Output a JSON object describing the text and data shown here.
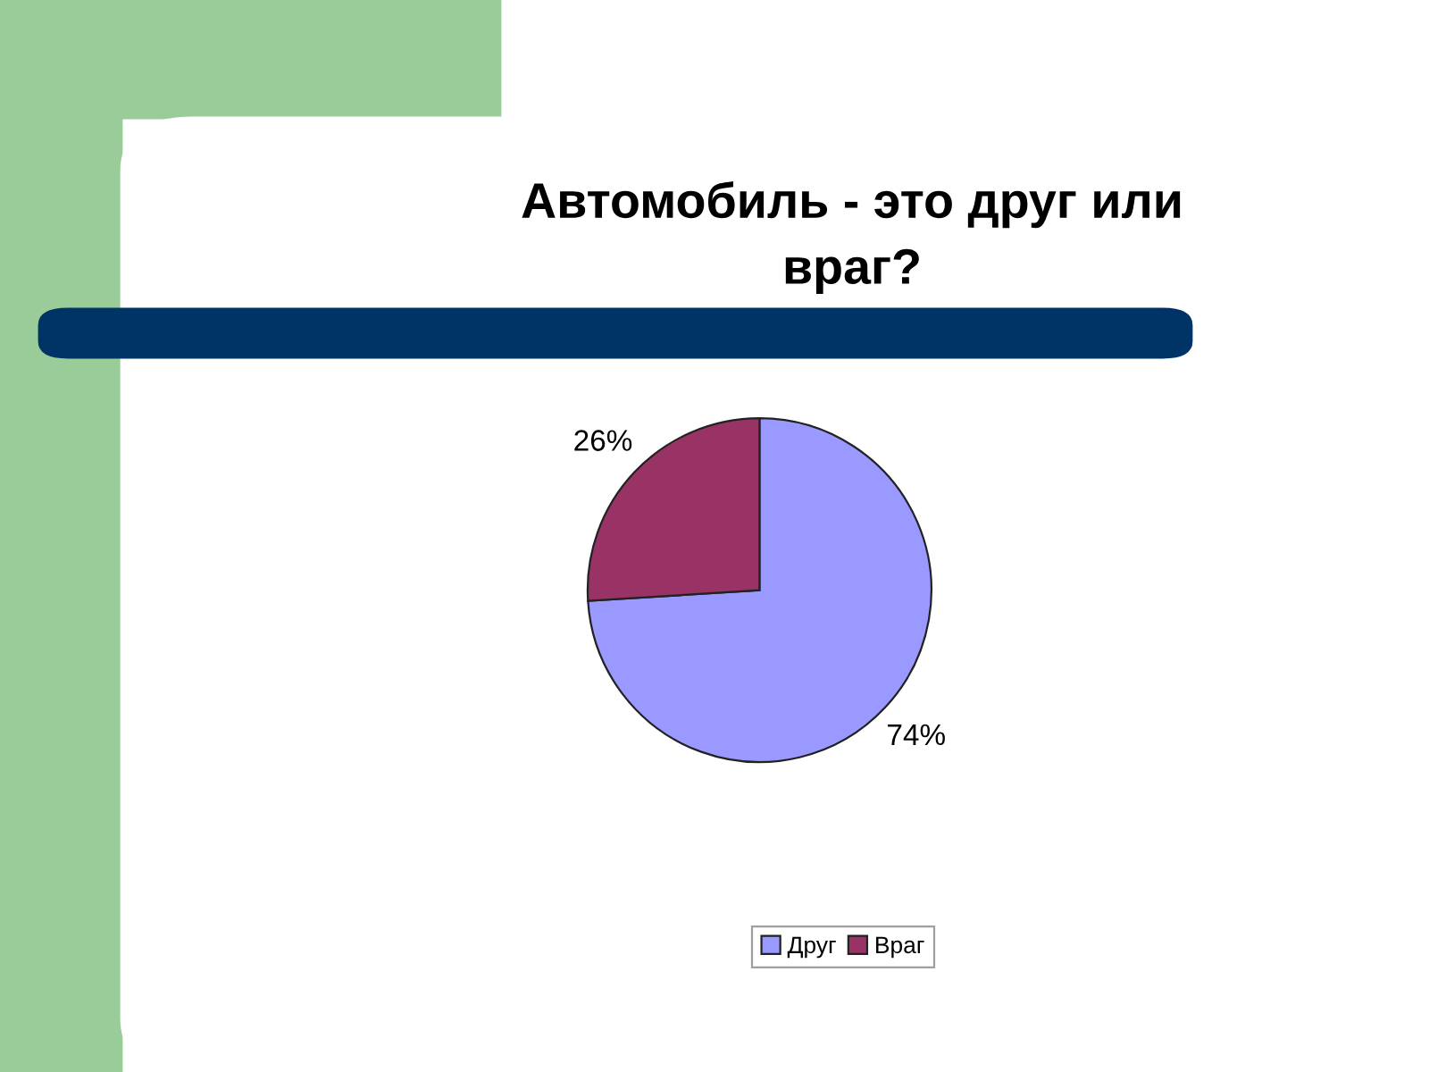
{
  "chart_data": {
    "type": "pie",
    "title": "Автомобиль - это друг или враг?",
    "categories": [
      "Друг",
      "Враг"
    ],
    "values": [
      74,
      26
    ],
    "colors": [
      "#9999ff",
      "#993366"
    ],
    "value_labels": [
      "74%",
      "26%"
    ],
    "legend": "bottom"
  }
}
